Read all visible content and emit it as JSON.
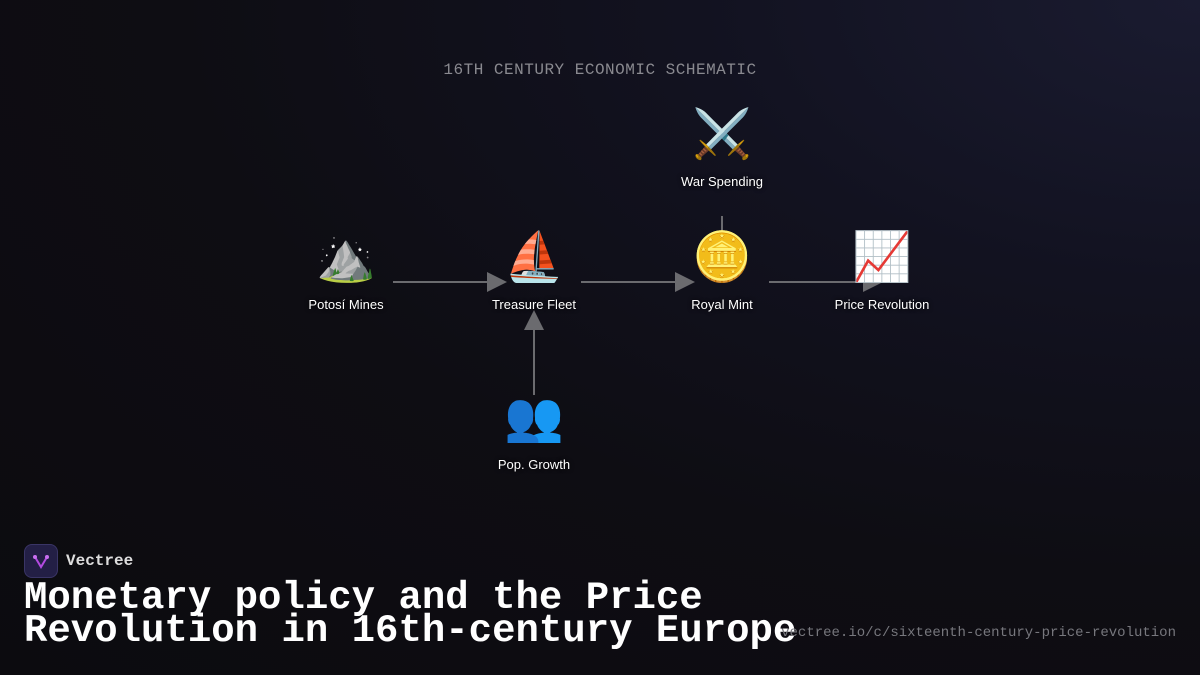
{
  "subtitle": "16TH CENTURY ECONOMIC SCHEMATIC",
  "nodes": [
    {
      "id": "potosi",
      "label": "Potosí Mines",
      "icon": "⛰️",
      "icon_name": "mountain-icon"
    },
    {
      "id": "fleet",
      "label": "Treasure Fleet",
      "icon": "⛵",
      "icon_name": "sailboat-icon"
    },
    {
      "id": "mint",
      "label": "Royal Mint",
      "icon": "🪙",
      "icon_name": "coin-icon"
    },
    {
      "id": "price",
      "label": "Price Revolution",
      "icon": "📈",
      "icon_name": "chart-increasing-icon"
    },
    {
      "id": "war",
      "label": "War Spending",
      "icon": "⚔️",
      "icon_name": "crossed-swords-icon"
    },
    {
      "id": "pop",
      "label": "Pop. Growth",
      "icon": "👥",
      "icon_name": "people-icon"
    }
  ],
  "edges": [
    [
      "potosi",
      "fleet"
    ],
    [
      "fleet",
      "mint"
    ],
    [
      "mint",
      "price"
    ],
    [
      "war",
      "mint"
    ],
    [
      "pop",
      "fleet"
    ]
  ],
  "brand": {
    "name": "Vectree"
  },
  "title": {
    "line1": "Monetary policy and the Price",
    "line2": "Revolution in 16th-century Europe"
  },
  "url": "vectree.io/c/sixteenth-century-price-revolution",
  "colors": {
    "edge": "#6b6b6f",
    "logo_accent": "#b24ae0"
  }
}
